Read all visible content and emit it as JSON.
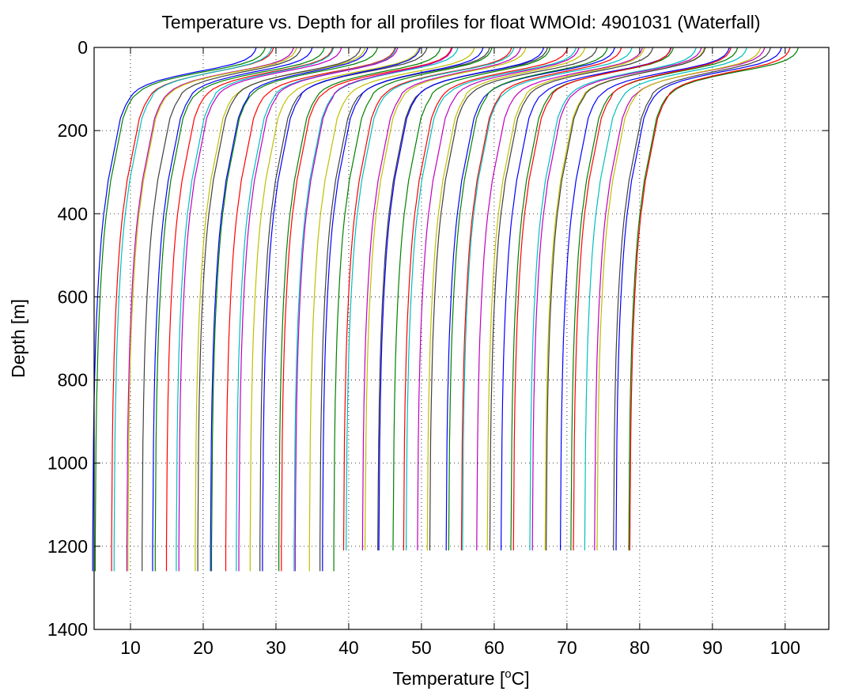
{
  "chart_data": {
    "type": "line",
    "title": "Temperature vs. Depth for all profiles for float WMOId: 4901031 (Waterfall)",
    "xlabel": "Temperature [°C]",
    "xlabel_base": "Temperature [",
    "xlabel_sup": "o",
    "xlabel_end": "C]",
    "ylabel": "Depth [m]",
    "xlim": [
      5,
      106
    ],
    "ylim": [
      0,
      1400
    ],
    "y_reversed": true,
    "xticks": [
      10,
      20,
      30,
      40,
      50,
      60,
      70,
      80,
      90,
      100
    ],
    "yticks": [
      0,
      200,
      400,
      600,
      800,
      1000,
      1200,
      1400
    ],
    "grid": true,
    "grid_style": "dotted",
    "legend": "none",
    "colors": [
      "#0000ff",
      "#008000",
      "#ff0000",
      "#00bfbf",
      "#bf00bf",
      "#bfbf00",
      "#404040"
    ],
    "profile_count": 66,
    "profile_offset_step": 1.15,
    "profile_depth_max": [
      1260,
      1260,
      1260,
      1260,
      1260,
      1260,
      1260,
      1260,
      1260,
      1260,
      1260,
      1260,
      1260,
      1260,
      1260,
      1260,
      1260,
      1260,
      1260,
      1260,
      1260,
      1260,
      1260,
      1260,
      1260,
      1260,
      1260,
      1260,
      1260,
      1260,
      1210,
      1210,
      1210,
      1210,
      1210,
      1210,
      1210,
      1210,
      1210,
      1210,
      1210,
      1210,
      1210,
      1210,
      1210,
      1210,
      1210,
      1210,
      1210,
      1210,
      1210,
      1210,
      1210,
      1210,
      1210,
      1210,
      1210,
      1210,
      1210,
      1210,
      1210,
      1210,
      1210,
      1210,
      1210,
      1210
    ]
  }
}
